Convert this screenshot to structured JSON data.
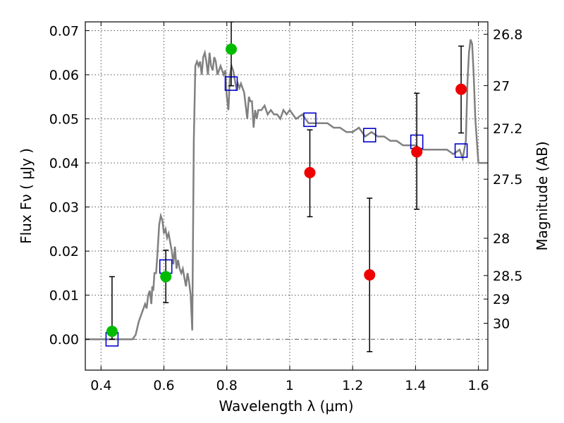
{
  "chart_data": {
    "type": "scatter",
    "title": "",
    "xlabel": "Wavelength  λ (μm)",
    "ylabel": "Flux  Fν  ( μJy )",
    "ylabel_right": "Magnitude (AB)",
    "xlim": [
      0.35,
      1.63
    ],
    "ylim": [
      -0.007,
      0.072
    ],
    "grid": true,
    "legend": "none",
    "x_ticks": [
      {
        "value": 0.4,
        "label": "0.4"
      },
      {
        "value": 0.6,
        "label": "0.6"
      },
      {
        "value": 0.8,
        "label": "0.8"
      },
      {
        "value": 1.0,
        "label": "1"
      },
      {
        "value": 1.2,
        "label": "1.2"
      },
      {
        "value": 1.4,
        "label": "1.4"
      },
      {
        "value": 1.6,
        "label": "1.6"
      }
    ],
    "y_ticks": [
      {
        "value": 0.0,
        "label": "0.00"
      },
      {
        "value": 0.01,
        "label": "0.01"
      },
      {
        "value": 0.02,
        "label": "0.02"
      },
      {
        "value": 0.03,
        "label": "0.03"
      },
      {
        "value": 0.04,
        "label": "0.04"
      },
      {
        "value": 0.05,
        "label": "0.05"
      },
      {
        "value": 0.06,
        "label": "0.06"
      },
      {
        "value": 0.07,
        "label": "0.07"
      }
    ],
    "right_ticks": [
      {
        "mag": 26.8,
        "label": "26.8"
      },
      {
        "mag": 27.0,
        "label": "27"
      },
      {
        "mag": 27.2,
        "label": "27.2"
      },
      {
        "mag": 27.5,
        "label": "27.5"
      },
      {
        "mag": 28.0,
        "label": "28"
      },
      {
        "mag": 28.5,
        "label": "28.5"
      },
      {
        "mag": 29.0,
        "label": "29"
      },
      {
        "mag": 30.0,
        "label": "30"
      }
    ],
    "colors": {
      "sed": "#808080",
      "model": "#0000cc",
      "detection": "#00bb00",
      "measurement": "#ee0000",
      "errorbar": "#000000",
      "grid": "#555555",
      "zeroline": "#555555"
    },
    "sed_x": [
      0.35,
      0.5,
      0.51,
      0.52,
      0.53,
      0.54,
      0.545,
      0.55,
      0.555,
      0.56,
      0.563,
      0.566,
      0.57,
      0.575,
      0.58,
      0.585,
      0.59,
      0.595,
      0.6,
      0.605,
      0.61,
      0.615,
      0.62,
      0.625,
      0.63,
      0.635,
      0.64,
      0.645,
      0.65,
      0.655,
      0.66,
      0.665,
      0.67,
      0.675,
      0.68,
      0.685,
      0.69,
      0.695,
      0.7,
      0.705,
      0.71,
      0.715,
      0.72,
      0.725,
      0.73,
      0.735,
      0.74,
      0.745,
      0.75,
      0.755,
      0.76,
      0.765,
      0.77,
      0.775,
      0.78,
      0.785,
      0.79,
      0.795,
      0.8,
      0.805,
      0.81,
      0.815,
      0.82,
      0.825,
      0.83,
      0.835,
      0.84,
      0.845,
      0.85,
      0.855,
      0.86,
      0.865,
      0.87,
      0.875,
      0.88,
      0.885,
      0.89,
      0.895,
      0.9,
      0.91,
      0.92,
      0.93,
      0.94,
      0.95,
      0.96,
      0.97,
      0.98,
      0.99,
      1.0,
      1.02,
      1.04,
      1.06,
      1.08,
      1.1,
      1.12,
      1.14,
      1.16,
      1.18,
      1.2,
      1.22,
      1.24,
      1.26,
      1.28,
      1.3,
      1.32,
      1.34,
      1.36,
      1.38,
      1.4,
      1.42,
      1.44,
      1.46,
      1.48,
      1.5,
      1.52,
      1.54,
      1.55,
      1.56,
      1.565,
      1.57,
      1.575,
      1.58,
      1.585,
      1.59,
      1.6,
      1.61,
      1.62,
      1.63
    ],
    "sed_y": [
      0.0,
      0.0,
      0.001,
      0.004,
      0.006,
      0.008,
      0.007,
      0.01,
      0.011,
      0.008,
      0.012,
      0.011,
      0.015,
      0.015,
      0.02,
      0.026,
      0.028,
      0.027,
      0.024,
      0.025,
      0.023,
      0.024,
      0.022,
      0.02,
      0.017,
      0.021,
      0.016,
      0.018,
      0.016,
      0.015,
      0.016,
      0.014,
      0.012,
      0.015,
      0.013,
      0.01,
      0.002,
      0.045,
      0.062,
      0.063,
      0.062,
      0.063,
      0.06,
      0.064,
      0.065,
      0.063,
      0.06,
      0.065,
      0.062,
      0.061,
      0.064,
      0.063,
      0.06,
      0.061,
      0.062,
      0.061,
      0.06,
      0.061,
      0.055,
      0.052,
      0.06,
      0.062,
      0.061,
      0.059,
      0.057,
      0.058,
      0.057,
      0.058,
      0.057,
      0.056,
      0.053,
      0.05,
      0.055,
      0.054,
      0.054,
      0.048,
      0.052,
      0.05,
      0.052,
      0.052,
      0.053,
      0.051,
      0.052,
      0.051,
      0.051,
      0.05,
      0.052,
      0.051,
      0.052,
      0.05,
      0.051,
      0.049,
      0.049,
      0.049,
      0.049,
      0.048,
      0.048,
      0.047,
      0.047,
      0.048,
      0.046,
      0.047,
      0.046,
      0.046,
      0.045,
      0.045,
      0.044,
      0.044,
      0.044,
      0.043,
      0.043,
      0.043,
      0.043,
      0.043,
      0.042,
      0.043,
      0.041,
      0.045,
      0.058,
      0.065,
      0.068,
      0.067,
      0.06,
      0.05,
      0.04,
      0.04,
      0.04,
      0.04
    ],
    "model_points": [
      {
        "x": 0.435,
        "y": 0.0
      },
      {
        "x": 0.606,
        "y": 0.0165
      },
      {
        "x": 0.814,
        "y": 0.058
      },
      {
        "x": 1.064,
        "y": 0.0498
      },
      {
        "x": 1.254,
        "y": 0.0463
      },
      {
        "x": 1.404,
        "y": 0.0448
      },
      {
        "x": 1.545,
        "y": 0.0428
      }
    ],
    "detections": [
      {
        "x": 0.435,
        "y": 0.0018,
        "yerr_low": 0.0,
        "yerr_high": 0.0142
      },
      {
        "x": 0.606,
        "y": 0.0142,
        "yerr_low": 0.0083,
        "yerr_high": 0.0202
      },
      {
        "x": 0.814,
        "y": 0.0658,
        "yerr_low": 0.0575,
        "yerr_high": 0.072
      }
    ],
    "measurements": [
      {
        "x": 1.064,
        "y": 0.0378,
        "yerr_low": 0.0278,
        "yerr_high": 0.0475
      },
      {
        "x": 1.254,
        "y": 0.0146,
        "yerr_low": -0.0028,
        "yerr_high": 0.032
      },
      {
        "x": 1.404,
        "y": 0.0425,
        "yerr_low": 0.0295,
        "yerr_high": 0.0558
      },
      {
        "x": 1.545,
        "y": 0.0567,
        "yerr_low": 0.0468,
        "yerr_high": 0.0665
      }
    ]
  }
}
